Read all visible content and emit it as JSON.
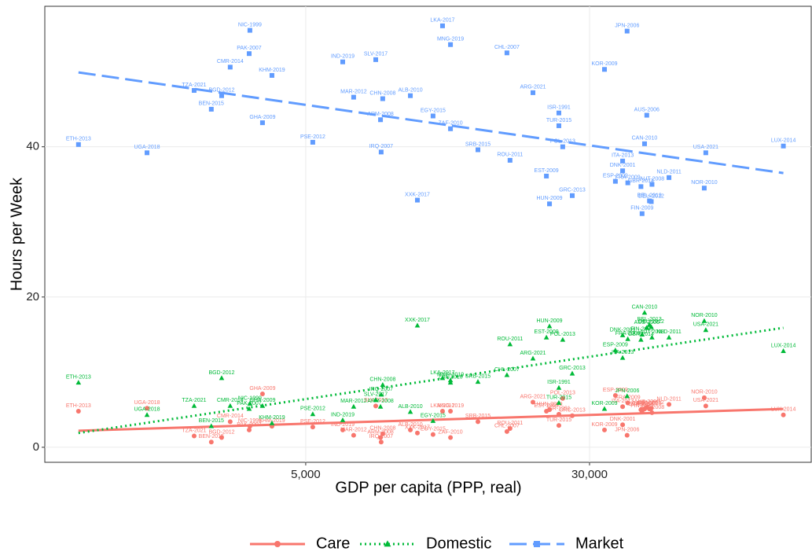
{
  "chart_data": {
    "type": "scatter",
    "x_label": "GDP per capita (PPP, real)",
    "y_label": "Hours per Week",
    "log_x": true,
    "grid": true,
    "legend": "bottom",
    "xlim": [
      963,
      122200
    ],
    "ylim": [
      -2,
      58.7
    ],
    "xticks": [
      {
        "value": 5000,
        "label": "5,000"
      },
      {
        "value": 30000,
        "label": "30,000"
      }
    ],
    "yticks": [
      0,
      20,
      40
    ],
    "labels": [
      "ETH-2013",
      "UGA-2018",
      "TZA-2021",
      "BGD-2012",
      "BEN-2015",
      "CMR-2014",
      "NIC-1999",
      "PAK-2007",
      "GHA-2009",
      "KHM-2019",
      "PSE-2012",
      "IND-2019",
      "MAR-2012",
      "SLV-2017",
      "CHN-2008",
      "IRQ-2007",
      "ARM-2008",
      "ALB-2010",
      "XXK-2017",
      "EGY-2015",
      "LKA-2017",
      "MNG-2019",
      "ZAF-2010",
      "SRB-2015",
      "ROU-2011",
      "CHL-2007",
      "ARG-2021",
      "EST-2009",
      "HUN-2009",
      "ISR-1991",
      "TUR-2015",
      "POL-2013",
      "GRC-2013",
      "KOR-2009",
      "JPN-2006",
      "ESP-2009",
      "DNK-2001",
      "ITA-2013",
      "FRA-2009",
      "CAN-2010",
      "AUS-2006",
      "AUT-2008",
      "NLD-2011",
      "BEL-2013",
      "DEU-2012",
      "FIN-2009",
      "GBR-2014",
      "NOR-2010",
      "USA-2021",
      "LUX-2014"
    ],
    "x": [
      1191,
      1836,
      2472,
      2941,
      2755,
      3104,
      3515,
      3499,
      3806,
      4040,
      5228,
      6316,
      6767,
      7780,
      8130,
      8050,
      8017,
      9680,
      10120,
      11170,
      11860,
      12470,
      12470,
      14830,
      18160,
      17810,
      20990,
      22850,
      23300,
      24720,
      24720,
      25330,
      26900,
      32970,
      38030,
      35320,
      36970,
      36970,
      38200,
      42460,
      43060,
      44500,
      49540,
      43800,
      44300,
      41800,
      41500,
      61900,
      62500,
      102000
    ],
    "fit_x": [
      1191,
      102000
    ],
    "series": [
      {
        "name": "Care",
        "color": "#f8766d",
        "marker": "circle",
        "dash": "solid",
        "fit": [
          2.2,
          5.1
        ],
        "values": [
          4.8,
          5.2,
          1.5,
          1.3,
          0.7,
          3.4,
          2.8,
          2.3,
          7.1,
          2.8,
          2.7,
          2.3,
          1.6,
          5.5,
          1.8,
          0.7,
          1.3,
          2.3,
          1.9,
          1.7,
          4.8,
          4.8,
          1.3,
          3.4,
          2.5,
          2.1,
          6.0,
          4.8,
          5.0,
          4.4,
          2.9,
          6.5,
          4.2,
          2.3,
          1.6,
          6.9,
          3.0,
          5.4,
          5.9,
          5.1,
          5.3,
          4.6,
          5.7,
          5.1,
          5.2,
          4.8,
          5.0,
          6.6,
          5.5,
          4.3
        ]
      },
      {
        "name": "Domestic",
        "color": "#00ba38",
        "marker": "triangle",
        "dash": "dotted",
        "fit": [
          1.9,
          15.9
        ],
        "values": [
          8.6,
          4.3,
          5.5,
          9.2,
          2.8,
          5.5,
          5.8,
          5.1,
          5.5,
          3.2,
          4.4,
          3.6,
          5.4,
          6.3,
          8.3,
          7.0,
          5.4,
          4.7,
          16.2,
          3.5,
          9.2,
          8.9,
          8.6,
          8.7,
          13.7,
          9.6,
          11.8,
          14.6,
          16.1,
          7.9,
          5.9,
          14.3,
          9.8,
          5.1,
          6.8,
          12.9,
          14.9,
          11.9,
          14.4,
          17.9,
          15.9,
          14.6,
          14.6,
          16.3,
          16.0,
          15.0,
          14.3,
          16.8,
          15.6,
          12.8
        ]
      },
      {
        "name": "Market",
        "color": "#619cff",
        "marker": "square",
        "dash": "dashed",
        "fit": [
          49.9,
          36.5
        ],
        "values": [
          40.3,
          39.2,
          47.5,
          46.8,
          45.0,
          50.6,
          55.5,
          52.4,
          43.2,
          49.5,
          40.6,
          51.3,
          46.6,
          51.6,
          46.4,
          39.3,
          43.6,
          46.8,
          32.9,
          44.1,
          56.1,
          53.6,
          42.4,
          39.6,
          38.2,
          52.5,
          47.2,
          36.1,
          32.4,
          44.5,
          42.8,
          40.0,
          33.5,
          50.3,
          55.4,
          35.4,
          36.8,
          38.1,
          35.2,
          40.4,
          44.2,
          35.0,
          35.9,
          32.8,
          32.7,
          31.1,
          34.7,
          34.5,
          39.2,
          40.1
        ]
      }
    ]
  }
}
